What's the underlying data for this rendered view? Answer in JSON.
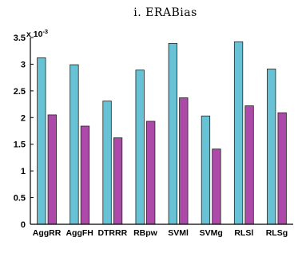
{
  "chart_data": {
    "type": "bar",
    "title": "i. ERABias",
    "xlabel": "",
    "ylabel": "",
    "y_multiplier": {
      "base": "x 10",
      "exponent": "-3"
    },
    "categories": [
      "AggRR",
      "AggFH",
      "DTRRR",
      "RBpw",
      "SVMl",
      "SVMg",
      "RLSl",
      "RLSg"
    ],
    "series": [
      {
        "color": "#66c2d4",
        "values": [
          3.12,
          2.99,
          2.31,
          2.89,
          3.39,
          2.03,
          3.42,
          2.91
        ]
      },
      {
        "color": "#ad4aa9",
        "values": [
          2.05,
          1.84,
          1.62,
          1.93,
          2.37,
          1.41,
          2.22,
          2.09
        ]
      }
    ],
    "ylim": [
      0,
      3.5
    ],
    "yticks": [
      0,
      0.5,
      1,
      1.5,
      2,
      2.5,
      3,
      3.5
    ],
    "ytick_labels": [
      "0",
      "0.5",
      "1",
      "1.5",
      "2",
      "2.5",
      "3",
      "3.5"
    ],
    "grid": false,
    "legend": "none"
  }
}
